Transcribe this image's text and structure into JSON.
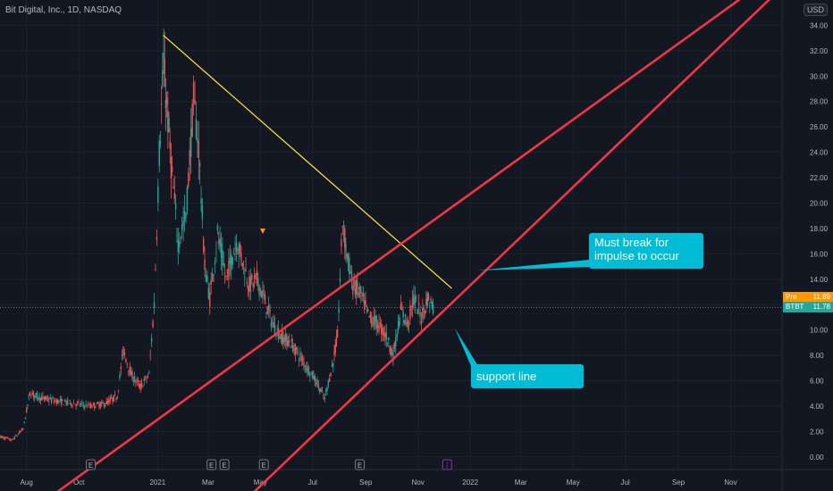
{
  "header": {
    "title": "Bit Digital, Inc., 1D, NASDAQ",
    "currency": "USD"
  },
  "price_tags": {
    "pre_label": "Pre",
    "pre_value": "11.89",
    "symbol_label": "BTBT",
    "symbol_value": "11.78"
  },
  "annotations": {
    "callout_break": "Must break for impulse to occur",
    "callout_support": "support line"
  },
  "colors": {
    "background": "#131722",
    "up": "#26a69a",
    "down": "#ef5350",
    "trendline_red": "#f23645",
    "trendline_yellow": "#ffeb3b",
    "callout": "#00bcd4",
    "grid": "#1e222d",
    "text": "#b2b5be"
  },
  "chart_data": {
    "type": "candlestick",
    "title": "Bit Digital, Inc., 1D, NASDAQ",
    "x_axis": {
      "tick_labels": [
        "Aug",
        "Oct",
        "2021",
        "Mar",
        "May",
        "Jul",
        "Sep",
        "Nov",
        "2022",
        "Mar",
        "May",
        "Jul",
        "Sep",
        "Nov"
      ],
      "range": [
        "2020-07-01",
        "2022-12-31"
      ]
    },
    "y_axis": {
      "tick_labels": [
        "0.00",
        "2.00",
        "4.00",
        "6.00",
        "8.00",
        "10.00",
        "12.00",
        "14.00",
        "16.00",
        "18.00",
        "20.00",
        "22.00",
        "24.00",
        "26.00",
        "28.00",
        "30.00",
        "32.00",
        "34.00"
      ],
      "range": [
        -1,
        36
      ],
      "position": "right"
    },
    "price_path": [
      {
        "x": "2020-07-01",
        "y": 1.6
      },
      {
        "x": "2020-07-15",
        "y": 1.3
      },
      {
        "x": "2020-07-28",
        "y": 2.2
      },
      {
        "x": "2020-08-05",
        "y": 5.0
      },
      {
        "x": "2020-08-20",
        "y": 4.6
      },
      {
        "x": "2020-09-05",
        "y": 4.4
      },
      {
        "x": "2020-09-25",
        "y": 4.2
      },
      {
        "x": "2020-10-15",
        "y": 4.0
      },
      {
        "x": "2020-11-01",
        "y": 4.2
      },
      {
        "x": "2020-11-15",
        "y": 4.8
      },
      {
        "x": "2020-11-22",
        "y": 8.4
      },
      {
        "x": "2020-12-01",
        "y": 6.5
      },
      {
        "x": "2020-12-12",
        "y": 5.5
      },
      {
        "x": "2020-12-22",
        "y": 6.5
      },
      {
        "x": "2020-12-28",
        "y": 12.0
      },
      {
        "x": "2021-01-03",
        "y": 24.0
      },
      {
        "x": "2021-01-08",
        "y": 31.0
      },
      {
        "x": "2021-01-13",
        "y": 26.5
      },
      {
        "x": "2021-01-18",
        "y": 22.0
      },
      {
        "x": "2021-01-25",
        "y": 17.0
      },
      {
        "x": "2021-02-03",
        "y": 19.0
      },
      {
        "x": "2021-02-12",
        "y": 28.0
      },
      {
        "x": "2021-02-18",
        "y": 24.5
      },
      {
        "x": "2021-02-25",
        "y": 15.0
      },
      {
        "x": "2021-03-03",
        "y": 12.5
      },
      {
        "x": "2021-03-12",
        "y": 17.5
      },
      {
        "x": "2021-03-22",
        "y": 14.0
      },
      {
        "x": "2021-04-03",
        "y": 17.0
      },
      {
        "x": "2021-04-10",
        "y": 15.5
      },
      {
        "x": "2021-04-18",
        "y": 13.5
      },
      {
        "x": "2021-04-27",
        "y": 14.0
      },
      {
        "x": "2021-05-05",
        "y": 12.5
      },
      {
        "x": "2021-05-15",
        "y": 10.5
      },
      {
        "x": "2021-05-25",
        "y": 9.5
      },
      {
        "x": "2021-06-05",
        "y": 9.0
      },
      {
        "x": "2021-06-15",
        "y": 8.0
      },
      {
        "x": "2021-06-25",
        "y": 7.0
      },
      {
        "x": "2021-07-05",
        "y": 6.0
      },
      {
        "x": "2021-07-15",
        "y": 4.6
      },
      {
        "x": "2021-07-25",
        "y": 7.5
      },
      {
        "x": "2021-07-30",
        "y": 9.5
      },
      {
        "x": "2021-08-05",
        "y": 18.5
      },
      {
        "x": "2021-08-10",
        "y": 16.0
      },
      {
        "x": "2021-08-17",
        "y": 13.5
      },
      {
        "x": "2021-08-25",
        "y": 13.0
      },
      {
        "x": "2021-09-05",
        "y": 11.0
      },
      {
        "x": "2021-09-15",
        "y": 10.5
      },
      {
        "x": "2021-09-25",
        "y": 9.5
      },
      {
        "x": "2021-10-03",
        "y": 8.0
      },
      {
        "x": "2021-10-12",
        "y": 11.5
      },
      {
        "x": "2021-10-20",
        "y": 10.5
      },
      {
        "x": "2021-10-27",
        "y": 12.5
      },
      {
        "x": "2021-11-05",
        "y": 11.0
      },
      {
        "x": "2021-11-12",
        "y": 12.5
      },
      {
        "x": "2021-11-20",
        "y": 11.8
      }
    ],
    "annotations": [
      {
        "type": "line",
        "name": "descending-resistance",
        "from": {
          "x": "2021-01-08",
          "y": 33.2
        },
        "to": {
          "x": "2021-12-10",
          "y": 13.3
        }
      },
      {
        "type": "line",
        "name": "upper-channel-line",
        "from": {
          "x": "2020-09-01",
          "y": -3.0
        },
        "to": {
          "x": "2022-12-01",
          "y": 37.0
        }
      },
      {
        "type": "line",
        "name": "lower-support-line",
        "from": {
          "x": "2021-04-20",
          "y": -3.0
        },
        "to": {
          "x": "2022-12-31",
          "y": 37.0
        }
      }
    ],
    "event_markers": [
      {
        "x": "2020-10-15",
        "label": "E"
      },
      {
        "x": "2021-03-05",
        "label": "E"
      },
      {
        "x": "2021-03-20",
        "label": "E"
      },
      {
        "x": "2021-05-05",
        "label": "E"
      },
      {
        "x": "2021-08-25",
        "label": "E"
      },
      {
        "x": "2021-12-05",
        "label": "⋮"
      }
    ],
    "last_price": 11.78,
    "pre_price": 11.89
  }
}
